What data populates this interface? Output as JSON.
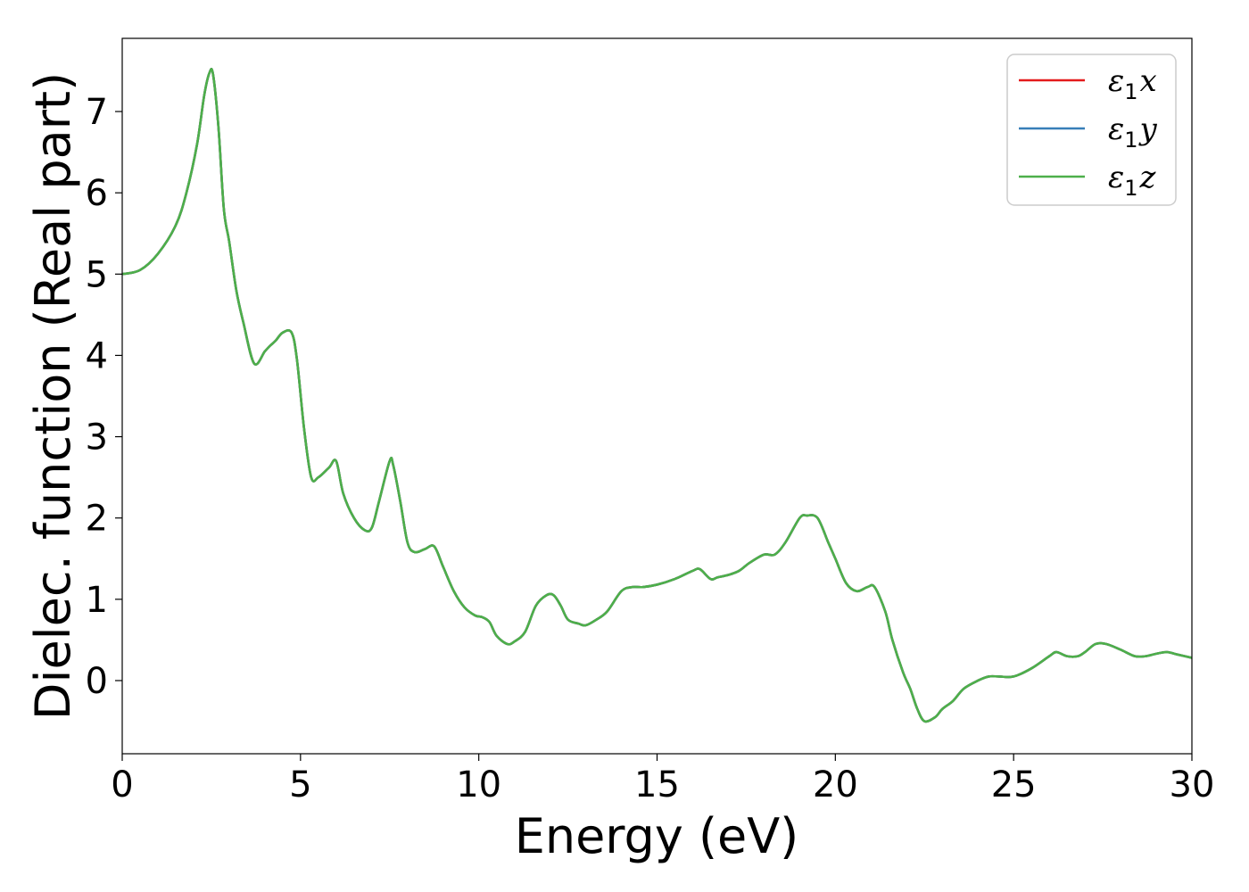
{
  "chart_data": {
    "type": "line",
    "title": "",
    "xlabel": "Energy (eV)",
    "ylabel": "Dielec. function (Real part)",
    "xlim": [
      0,
      30
    ],
    "ylim": [
      -0.9,
      7.9
    ],
    "xticks": [
      0,
      5,
      10,
      15,
      20,
      25,
      30
    ],
    "yticks": [
      0,
      1,
      2,
      3,
      4,
      5,
      6,
      7
    ],
    "grid": false,
    "legend_position": "top-right",
    "series": [
      {
        "name": "ε1x",
        "legend_main": "ε",
        "legend_sub": "1",
        "legend_var": "x",
        "color": "#e41a1c",
        "x": [
          0,
          0.5,
          1.0,
          1.5,
          1.8,
          2.1,
          2.3,
          2.45,
          2.55,
          2.7,
          2.85,
          3.0,
          3.2,
          3.4,
          3.7,
          4.0,
          4.15,
          4.3,
          4.5,
          4.75,
          4.9,
          5.1,
          5.3,
          5.5,
          5.8,
          6.0,
          6.2,
          6.5,
          6.8,
          7.0,
          7.2,
          7.5,
          7.6,
          7.8,
          8.0,
          8.2,
          8.5,
          8.75,
          9.0,
          9.3,
          9.6,
          9.9,
          10.1,
          10.3,
          10.5,
          10.8,
          11.0,
          11.3,
          11.6,
          11.9,
          12.1,
          12.3,
          12.5,
          12.8,
          13.0,
          13.3,
          13.6,
          14.0,
          14.3,
          14.6,
          15.0,
          15.5,
          16.0,
          16.2,
          16.5,
          16.7,
          17.0,
          17.3,
          17.6,
          18.0,
          18.3,
          18.6,
          19.0,
          19.2,
          19.5,
          19.8,
          20.0,
          20.3,
          20.6,
          20.9,
          21.1,
          21.4,
          21.6,
          21.9,
          22.1,
          22.3,
          22.5,
          22.8,
          23.0,
          23.3,
          23.6,
          24.0,
          24.3,
          24.6,
          25.0,
          25.5,
          26.0,
          26.2,
          26.5,
          26.8,
          27.0,
          27.3,
          27.6,
          28.0,
          28.4,
          28.7,
          29.0,
          29.3,
          29.6,
          30.0
        ],
        "y": [
          5.0,
          5.05,
          5.25,
          5.6,
          6.0,
          6.6,
          7.2,
          7.48,
          7.45,
          6.8,
          5.8,
          5.4,
          4.8,
          4.4,
          3.9,
          4.05,
          4.12,
          4.18,
          4.28,
          4.28,
          3.95,
          3.1,
          2.5,
          2.5,
          2.62,
          2.7,
          2.3,
          2.0,
          1.85,
          1.88,
          2.2,
          2.7,
          2.65,
          2.2,
          1.7,
          1.58,
          1.62,
          1.65,
          1.4,
          1.1,
          0.9,
          0.8,
          0.78,
          0.72,
          0.55,
          0.45,
          0.48,
          0.6,
          0.92,
          1.05,
          1.05,
          0.92,
          0.75,
          0.7,
          0.68,
          0.75,
          0.85,
          1.1,
          1.15,
          1.15,
          1.18,
          1.25,
          1.35,
          1.37,
          1.25,
          1.27,
          1.3,
          1.35,
          1.45,
          1.55,
          1.55,
          1.7,
          2.0,
          2.03,
          2.0,
          1.7,
          1.5,
          1.2,
          1.1,
          1.15,
          1.15,
          0.85,
          0.5,
          0.1,
          -0.1,
          -0.35,
          -0.5,
          -0.45,
          -0.35,
          -0.25,
          -0.1,
          0.0,
          0.05,
          0.05,
          0.05,
          0.15,
          0.3,
          0.35,
          0.3,
          0.3,
          0.35,
          0.45,
          0.45,
          0.38,
          0.3,
          0.3,
          0.33,
          0.35,
          0.32,
          0.28
        ]
      },
      {
        "name": "ε1y",
        "legend_main": "ε",
        "legend_sub": "1",
        "legend_var": "y",
        "color": "#377eb8",
        "x": [
          0,
          0.5,
          1.0,
          1.5,
          1.8,
          2.1,
          2.3,
          2.45,
          2.55,
          2.7,
          2.85,
          3.0,
          3.2,
          3.4,
          3.7,
          4.0,
          4.15,
          4.3,
          4.5,
          4.75,
          4.9,
          5.1,
          5.3,
          5.5,
          5.8,
          6.0,
          6.2,
          6.5,
          6.8,
          7.0,
          7.2,
          7.5,
          7.6,
          7.8,
          8.0,
          8.2,
          8.5,
          8.75,
          9.0,
          9.3,
          9.6,
          9.9,
          10.1,
          10.3,
          10.5,
          10.8,
          11.0,
          11.3,
          11.6,
          11.9,
          12.1,
          12.3,
          12.5,
          12.8,
          13.0,
          13.3,
          13.6,
          14.0,
          14.3,
          14.6,
          15.0,
          15.5,
          16.0,
          16.2,
          16.5,
          16.7,
          17.0,
          17.3,
          17.6,
          18.0,
          18.3,
          18.6,
          19.0,
          19.2,
          19.5,
          19.8,
          20.0,
          20.3,
          20.6,
          20.9,
          21.1,
          21.4,
          21.6,
          21.9,
          22.1,
          22.3,
          22.5,
          22.8,
          23.0,
          23.3,
          23.6,
          24.0,
          24.3,
          24.6,
          25.0,
          25.5,
          26.0,
          26.2,
          26.5,
          26.8,
          27.0,
          27.3,
          27.6,
          28.0,
          28.4,
          28.7,
          29.0,
          29.3,
          29.6,
          30.0
        ],
        "y": [
          5.0,
          5.05,
          5.25,
          5.6,
          6.0,
          6.6,
          7.2,
          7.48,
          7.45,
          6.8,
          5.8,
          5.4,
          4.8,
          4.4,
          3.9,
          4.05,
          4.12,
          4.18,
          4.28,
          4.28,
          3.95,
          3.1,
          2.5,
          2.5,
          2.62,
          2.7,
          2.3,
          2.0,
          1.85,
          1.88,
          2.2,
          2.7,
          2.65,
          2.2,
          1.7,
          1.58,
          1.62,
          1.65,
          1.4,
          1.1,
          0.9,
          0.8,
          0.78,
          0.72,
          0.55,
          0.45,
          0.48,
          0.6,
          0.92,
          1.05,
          1.05,
          0.92,
          0.75,
          0.7,
          0.68,
          0.75,
          0.85,
          1.1,
          1.15,
          1.15,
          1.18,
          1.25,
          1.35,
          1.37,
          1.25,
          1.27,
          1.3,
          1.35,
          1.45,
          1.55,
          1.55,
          1.7,
          2.0,
          2.03,
          2.0,
          1.7,
          1.5,
          1.2,
          1.1,
          1.15,
          1.15,
          0.85,
          0.5,
          0.1,
          -0.1,
          -0.35,
          -0.5,
          -0.45,
          -0.35,
          -0.25,
          -0.1,
          0.0,
          0.05,
          0.05,
          0.05,
          0.15,
          0.3,
          0.35,
          0.3,
          0.3,
          0.35,
          0.45,
          0.45,
          0.38,
          0.3,
          0.3,
          0.33,
          0.35,
          0.32,
          0.28
        ]
      },
      {
        "name": "ε1z",
        "legend_main": "ε",
        "legend_sub": "1",
        "legend_var": "z",
        "color": "#4daf4a",
        "x": [
          0,
          0.5,
          1.0,
          1.5,
          1.8,
          2.1,
          2.3,
          2.45,
          2.55,
          2.7,
          2.85,
          3.0,
          3.2,
          3.4,
          3.7,
          4.0,
          4.15,
          4.3,
          4.5,
          4.75,
          4.9,
          5.1,
          5.3,
          5.5,
          5.8,
          6.0,
          6.2,
          6.5,
          6.8,
          7.0,
          7.2,
          7.5,
          7.6,
          7.8,
          8.0,
          8.2,
          8.5,
          8.75,
          9.0,
          9.3,
          9.6,
          9.9,
          10.1,
          10.3,
          10.5,
          10.8,
          11.0,
          11.3,
          11.6,
          11.9,
          12.1,
          12.3,
          12.5,
          12.8,
          13.0,
          13.3,
          13.6,
          14.0,
          14.3,
          14.6,
          15.0,
          15.5,
          16.0,
          16.2,
          16.5,
          16.7,
          17.0,
          17.3,
          17.6,
          18.0,
          18.3,
          18.6,
          19.0,
          19.2,
          19.5,
          19.8,
          20.0,
          20.3,
          20.6,
          20.9,
          21.1,
          21.4,
          21.6,
          21.9,
          22.1,
          22.3,
          22.5,
          22.8,
          23.0,
          23.3,
          23.6,
          24.0,
          24.3,
          24.6,
          25.0,
          25.5,
          26.0,
          26.2,
          26.5,
          26.8,
          27.0,
          27.3,
          27.6,
          28.0,
          28.4,
          28.7,
          29.0,
          29.3,
          29.6,
          30.0
        ],
        "y": [
          5.0,
          5.05,
          5.25,
          5.6,
          6.0,
          6.6,
          7.2,
          7.48,
          7.45,
          6.8,
          5.8,
          5.4,
          4.8,
          4.4,
          3.9,
          4.05,
          4.12,
          4.18,
          4.28,
          4.28,
          3.95,
          3.1,
          2.5,
          2.5,
          2.62,
          2.7,
          2.3,
          2.0,
          1.85,
          1.88,
          2.2,
          2.7,
          2.65,
          2.2,
          1.7,
          1.58,
          1.62,
          1.65,
          1.4,
          1.1,
          0.9,
          0.8,
          0.78,
          0.72,
          0.55,
          0.45,
          0.48,
          0.6,
          0.92,
          1.05,
          1.05,
          0.92,
          0.75,
          0.7,
          0.68,
          0.75,
          0.85,
          1.1,
          1.15,
          1.15,
          1.18,
          1.25,
          1.35,
          1.37,
          1.25,
          1.27,
          1.3,
          1.35,
          1.45,
          1.55,
          1.55,
          1.7,
          2.0,
          2.03,
          2.0,
          1.7,
          1.5,
          1.2,
          1.1,
          1.15,
          1.15,
          0.85,
          0.5,
          0.1,
          -0.1,
          -0.35,
          -0.5,
          -0.45,
          -0.35,
          -0.25,
          -0.1,
          0.0,
          0.05,
          0.05,
          0.05,
          0.15,
          0.3,
          0.35,
          0.3,
          0.3,
          0.35,
          0.45,
          0.45,
          0.38,
          0.3,
          0.3,
          0.33,
          0.35,
          0.32,
          0.28
        ]
      }
    ]
  }
}
